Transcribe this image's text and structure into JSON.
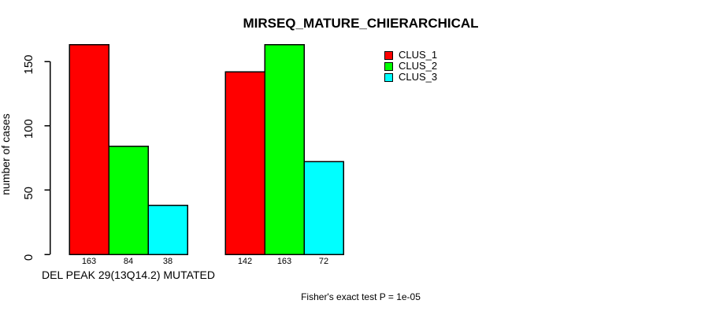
{
  "page": {
    "background": "#FFFFFF",
    "text_color": "#000000",
    "axis_color": "#000000"
  },
  "chart_data": {
    "type": "bar",
    "title": "MIRSEQ_MATURE_CHIERARCHICAL",
    "ylabel": "number of cases",
    "categories": [
      "DEL PEAK 29(13Q14.2) MUTATED",
      ""
    ],
    "series": [
      {
        "name": "CLUS_1",
        "color": "#FF0000",
        "values": [
          163,
          142
        ]
      },
      {
        "name": "CLUS_2",
        "color": "#00FF00",
        "values": [
          84,
          163
        ]
      },
      {
        "name": "CLUS_3",
        "color": "#00FFFF",
        "values": [
          38,
          72
        ]
      }
    ],
    "yticks": [
      0,
      50,
      100,
      150
    ],
    "ylim": [
      0,
      170
    ],
    "grid": false,
    "bar_value_labels": true,
    "legend_position": "top-right",
    "annotation": "Fisher's exact test P = 1e-05"
  }
}
